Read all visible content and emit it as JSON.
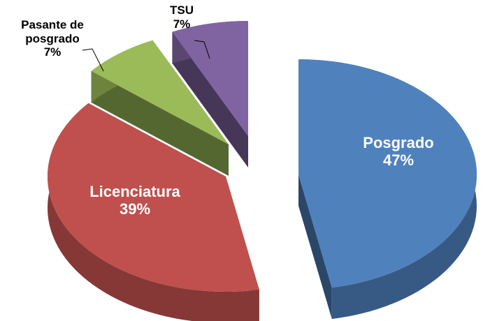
{
  "chart_data": {
    "type": "pie",
    "categories": [
      "Posgrado",
      "Licenciatura",
      "Pasante de posgrado",
      "TSU"
    ],
    "values": [
      47,
      39,
      7,
      7
    ],
    "value_labels": [
      "47%",
      "39%",
      "7%",
      "7%"
    ],
    "colors": [
      "#4f81bd",
      "#c0504d",
      "#9bbb59",
      "#8064a2"
    ]
  }
}
